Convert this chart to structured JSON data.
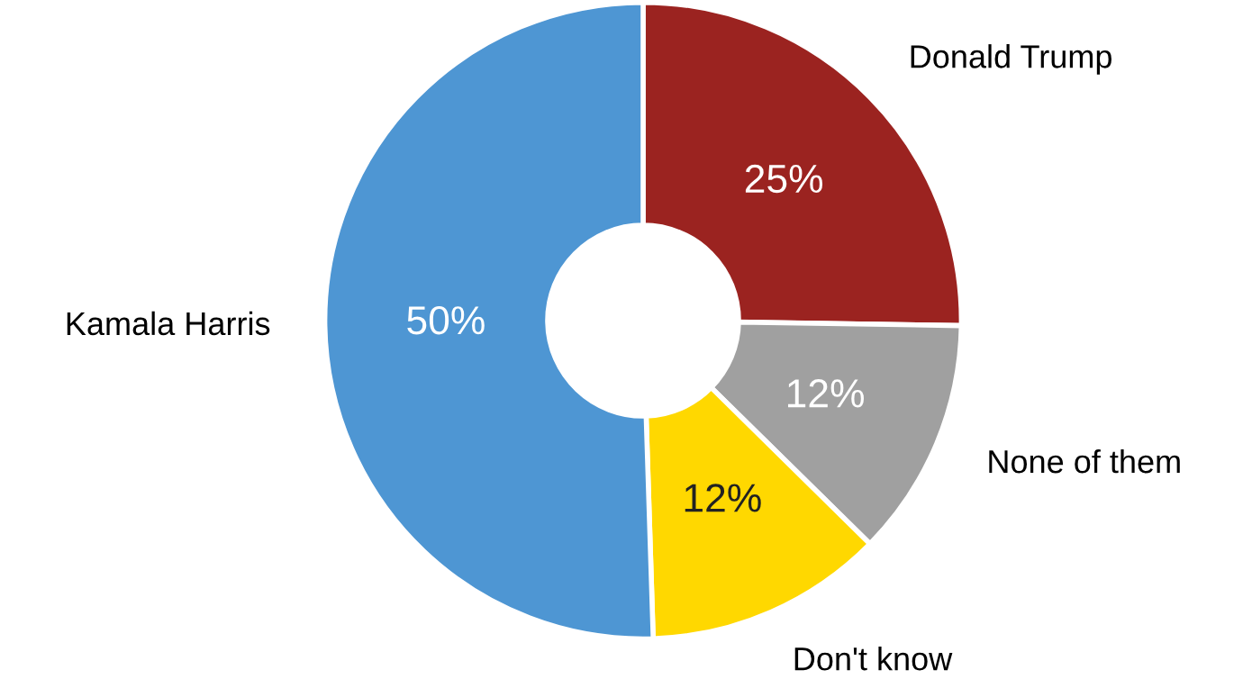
{
  "chart_data": {
    "type": "donut",
    "categories": [
      "Donald Trump",
      "None of them",
      "Don't know",
      "Kamala Harris"
    ],
    "values": [
      25,
      12,
      12,
      50
    ],
    "colors": [
      "#9b2320",
      "#a0a0a0",
      "#ffd800",
      "#4e96d3"
    ],
    "value_labels": [
      "25%",
      "12%",
      "12%",
      "50%"
    ]
  }
}
